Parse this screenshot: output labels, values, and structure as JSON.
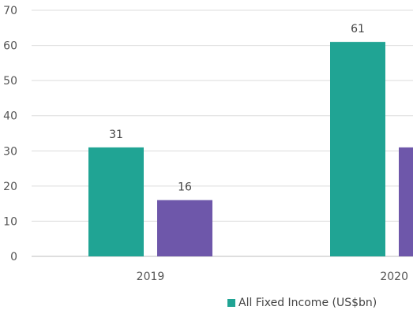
{
  "chart_data": {
    "type": "bar",
    "categories": [
      "2019",
      "2020"
    ],
    "series": [
      {
        "name": "All Fixed Income (US$bn)",
        "values": [
          31,
          61
        ],
        "color": "#20a494"
      },
      {
        "values": [
          16,
          31
        ],
        "color": "#6e57aa"
      }
    ],
    "ylim": [
      0,
      70
    ],
    "yticks": [
      0,
      10,
      20,
      30,
      40,
      50,
      60,
      70
    ],
    "grid": true,
    "legend_position": "bottom"
  }
}
